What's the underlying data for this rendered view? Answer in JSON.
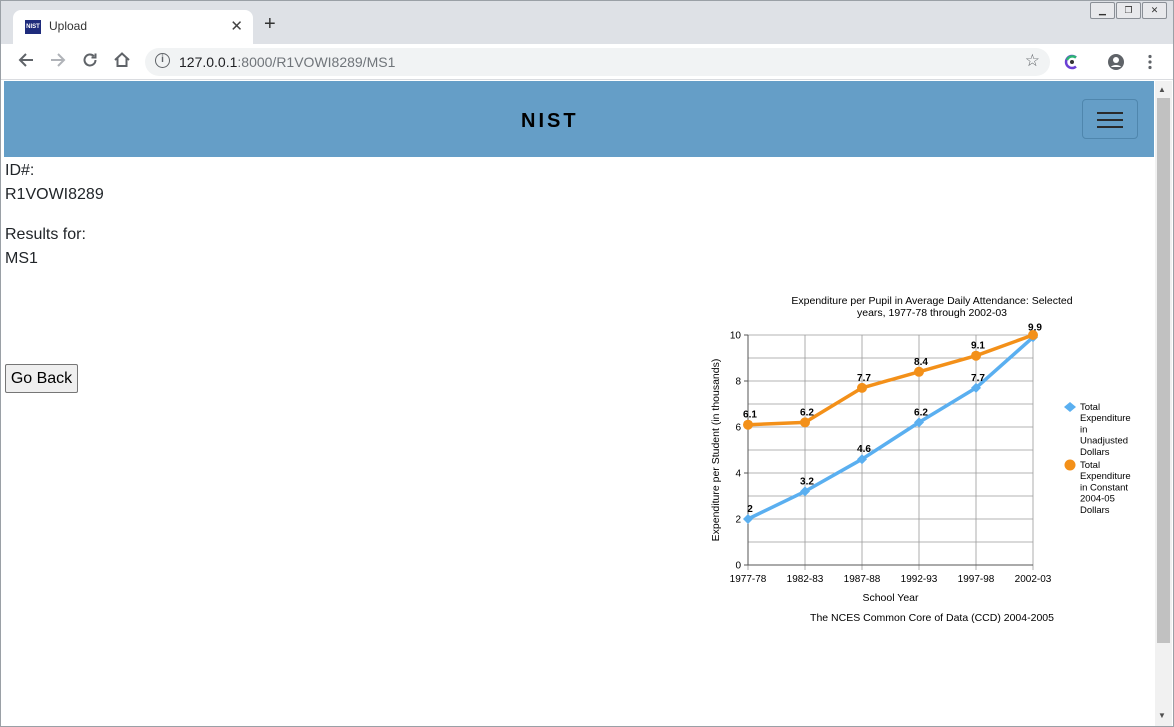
{
  "browser": {
    "tab_title": "Upload",
    "favicon_text": "NIST",
    "url_host": "127.0.0.1",
    "url_rest": ":8000/R1VOWI8289/MS1",
    "icons": [
      "back-icon",
      "forward-icon",
      "reload-icon",
      "home-icon",
      "info-icon",
      "star-icon",
      "extension-icon",
      "account-icon",
      "menu-icon"
    ]
  },
  "header": {
    "logo_text": "NIST",
    "accent_color": "#659ec7"
  },
  "content": {
    "id_label": "ID#:",
    "id_value": "R1VOWI8289",
    "results_label": "Results for:",
    "results_value": "MS1",
    "back_button": "Go Back"
  },
  "chart_data": {
    "type": "line",
    "title_line1": "Expenditure per Pupil in Average Daily Attendance: Selected",
    "title_line2": "years, 1977-78 through 2002-03",
    "xlabel": "School Year",
    "ylabel": "Expenditure per Student (in thousands)",
    "source": "The NCES Common Core of Data (CCD) 2004-2005",
    "categories": [
      "1977-78",
      "1982-83",
      "1987-88",
      "1992-93",
      "1997-98",
      "2002-03"
    ],
    "ylim": [
      0,
      10
    ],
    "yticks": [
      "0",
      "2",
      "4",
      "6",
      "8",
      "10"
    ],
    "grid": true,
    "legend_position": "right",
    "series": [
      {
        "name": "Total Expenditure in Unadjusted Dollars",
        "legend_lines": [
          "Total",
          "Expenditure",
          "in",
          "Unadjusted",
          "Dollars"
        ],
        "color": "#5aaff0",
        "marker": "diamond",
        "values": [
          2,
          3.2,
          4.6,
          6.2,
          7.7,
          9.9
        ],
        "labels": [
          "2",
          "3.2",
          "4.6",
          "6.2",
          "7.7",
          "9.9"
        ]
      },
      {
        "name": "Total Expenditure in Constant 2004-05 Dollars",
        "legend_lines": [
          "Total",
          "Expenditure",
          "in Constant",
          "2004-05",
          "Dollars"
        ],
        "color": "#f39019",
        "marker": "circle",
        "values": [
          6.1,
          6.2,
          7.7,
          8.4,
          9.1,
          10
        ],
        "labels": [
          "6.1",
          "6.2",
          "7.7",
          "8.4",
          "9.1",
          ""
        ]
      }
    ]
  }
}
